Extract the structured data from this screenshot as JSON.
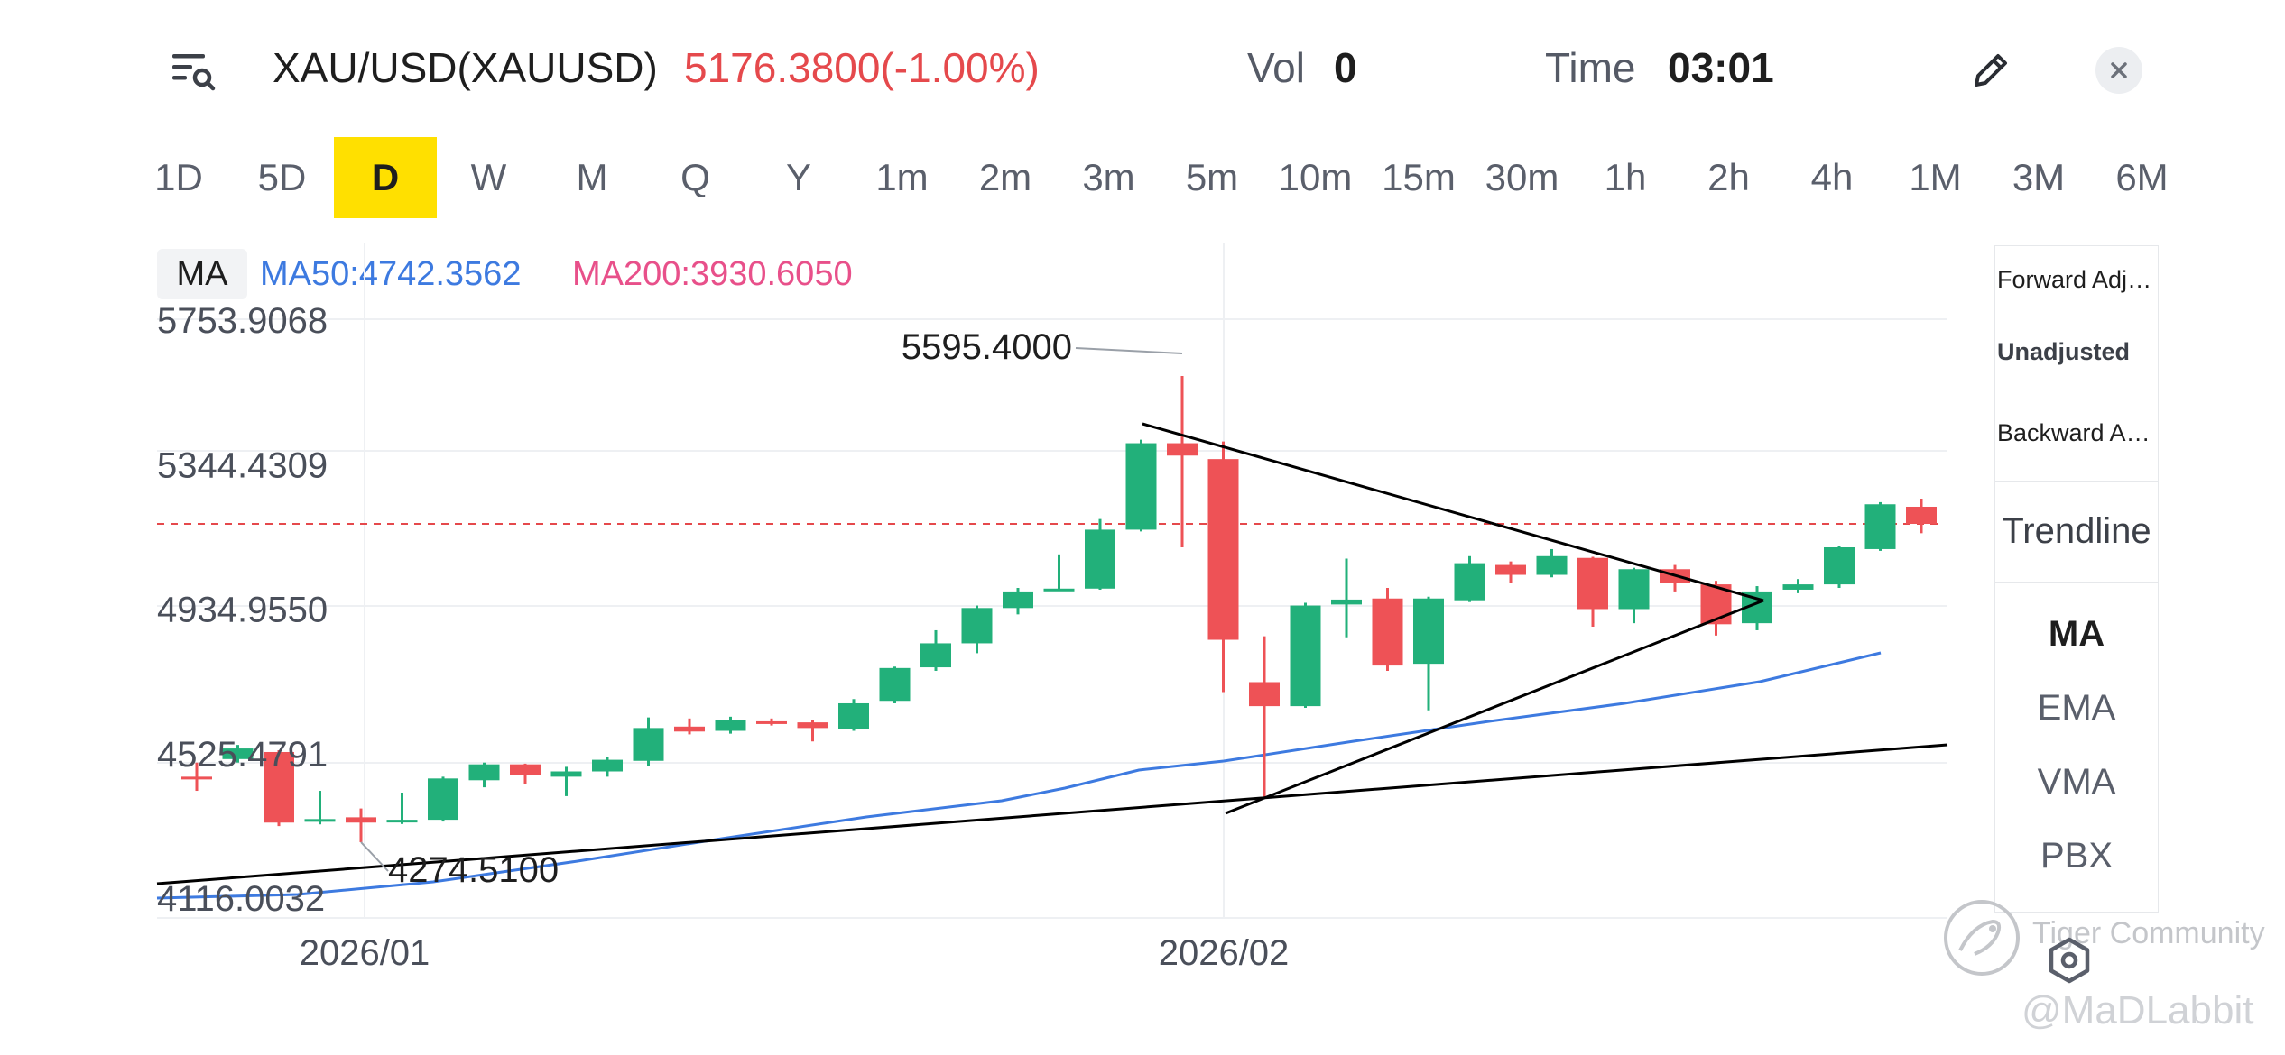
{
  "header": {
    "symbol": "XAU/USD(XAUUSD)",
    "price_change": "5176.3800(-1.00%)",
    "vol_label": "Vol",
    "vol_value": "0",
    "time_label": "Time",
    "time_value": "03:01",
    "icons": {
      "menu": "list-search-icon",
      "edit": "pencil-icon",
      "close": "close-icon"
    }
  },
  "periods": [
    "1D",
    "5D",
    "D",
    "W",
    "M",
    "Q",
    "Y",
    "1m",
    "2m",
    "3m",
    "5m",
    "10m",
    "15m",
    "30m",
    "1h",
    "2h",
    "4h",
    "1M",
    "3M",
    "6M"
  ],
  "active_period": "D",
  "legend": {
    "tag": "MA",
    "ma50": "MA50:4742.3562",
    "ma200": "MA200:3930.6050"
  },
  "side_panel": {
    "adjustments": [
      "Forward Adju...",
      "Unadjusted",
      "Backward Ad..."
    ],
    "selected_adjustment": "Unadjusted",
    "trendline": "Trendline",
    "indicators": [
      "MA",
      "EMA",
      "VMA",
      "PBX"
    ],
    "selected_indicator": "MA"
  },
  "watermark": {
    "community": "Tiger Community",
    "user": "@MaDLabbit"
  },
  "colors": {
    "up": "#22b07a",
    "down": "#ee5256",
    "ma50": "#3d7ae0",
    "ma200": "#e8508a",
    "price_line": "#e5494c",
    "active_period_bg": "#ffe000"
  },
  "chart_data": {
    "type": "candlestick",
    "y_ticks": [
      "5753.9068",
      "5344.4309",
      "4934.9550",
      "4525.4791",
      "4116.0032"
    ],
    "ylim": [
      4116.0032,
      5753.9068
    ],
    "x_ticks": [
      "2026/01",
      "2026/02"
    ],
    "current_price": 5176.38,
    "annotations": [
      {
        "label": "5595.4000",
        "value": 5595.4,
        "kind": "high"
      },
      {
        "label": "4274.5100",
        "value": 4274.51,
        "kind": "low"
      }
    ],
    "candles": [
      {
        "o": 4460,
        "c": 4455,
        "h": 4500,
        "l": 4420
      },
      {
        "o": 4510,
        "c": 4540,
        "h": 4550,
        "l": 4500
      },
      {
        "o": 4530,
        "c": 4330,
        "h": 4535,
        "l": 4320
      },
      {
        "o": 4335,
        "c": 4340,
        "h": 4420,
        "l": 4325
      },
      {
        "o": 4345,
        "c": 4330,
        "h": 4370,
        "l": 4274.51
      },
      {
        "o": 4335,
        "c": 4338,
        "h": 4415,
        "l": 4326
      },
      {
        "o": 4338,
        "c": 4455,
        "h": 4460,
        "l": 4333
      },
      {
        "o": 4450,
        "c": 4495,
        "h": 4500,
        "l": 4430
      },
      {
        "o": 4495,
        "c": 4465,
        "h": 4497,
        "l": 4440
      },
      {
        "o": 4460,
        "c": 4475,
        "h": 4488,
        "l": 4405
      },
      {
        "o": 4475,
        "c": 4508,
        "h": 4515,
        "l": 4460
      },
      {
        "o": 4505,
        "c": 4598,
        "h": 4628,
        "l": 4490
      },
      {
        "o": 4602,
        "c": 4588,
        "h": 4625,
        "l": 4580
      },
      {
        "o": 4590,
        "c": 4620,
        "h": 4630,
        "l": 4582
      },
      {
        "o": 4617,
        "c": 4612,
        "h": 4625,
        "l": 4605
      },
      {
        "o": 4614,
        "c": 4598,
        "h": 4620,
        "l": 4560
      },
      {
        "o": 4595,
        "c": 4668,
        "h": 4680,
        "l": 4590
      },
      {
        "o": 4675,
        "c": 4768,
        "h": 4772,
        "l": 4668
      },
      {
        "o": 4770,
        "c": 4838,
        "h": 4875,
        "l": 4760
      },
      {
        "o": 4838,
        "c": 4938,
        "h": 4945,
        "l": 4810
      },
      {
        "o": 4938,
        "c": 4985,
        "h": 4995,
        "l": 4920
      },
      {
        "o": 4990,
        "c": 4993,
        "h": 5090,
        "l": 4988
      },
      {
        "o": 4993,
        "c": 5160,
        "h": 5190,
        "l": 4990
      },
      {
        "o": 5160,
        "c": 5405,
        "h": 5415,
        "l": 5155
      },
      {
        "o": 5405,
        "c": 5370,
        "h": 5595.4,
        "l": 5110
      },
      {
        "o": 5360,
        "c": 4848,
        "h": 5410,
        "l": 4700
      },
      {
        "o": 4728,
        "c": 4660,
        "h": 4858,
        "l": 4402
      },
      {
        "o": 4660,
        "c": 4945,
        "h": 4953,
        "l": 4655
      },
      {
        "o": 4948,
        "c": 4962,
        "h": 5078,
        "l": 4855
      },
      {
        "o": 4965,
        "c": 4775,
        "h": 4995,
        "l": 4760
      },
      {
        "o": 4780,
        "c": 4965,
        "h": 4970,
        "l": 4648
      },
      {
        "o": 4960,
        "c": 5065,
        "h": 5085,
        "l": 4955
      },
      {
        "o": 5060,
        "c": 5032,
        "h": 5070,
        "l": 5010
      },
      {
        "o": 5032,
        "c": 5085,
        "h": 5105,
        "l": 5025
      },
      {
        "o": 5080,
        "c": 4935,
        "h": 5083,
        "l": 4885
      },
      {
        "o": 4935,
        "c": 5048,
        "h": 5052,
        "l": 4895
      },
      {
        "o": 5048,
        "c": 5010,
        "h": 5060,
        "l": 4985
      },
      {
        "o": 5005,
        "c": 4892,
        "h": 5015,
        "l": 4860
      },
      {
        "o": 4895,
        "c": 4985,
        "h": 5000,
        "l": 4875
      },
      {
        "o": 4990,
        "c": 5005,
        "h": 5020,
        "l": 4980
      },
      {
        "o": 5005,
        "c": 5110,
        "h": 5115,
        "l": 4995
      },
      {
        "o": 5105,
        "c": 5232,
        "h": 5238,
        "l": 5100
      },
      {
        "o": 5225,
        "c": 5176.38,
        "h": 5248,
        "l": 5150
      }
    ]
  }
}
